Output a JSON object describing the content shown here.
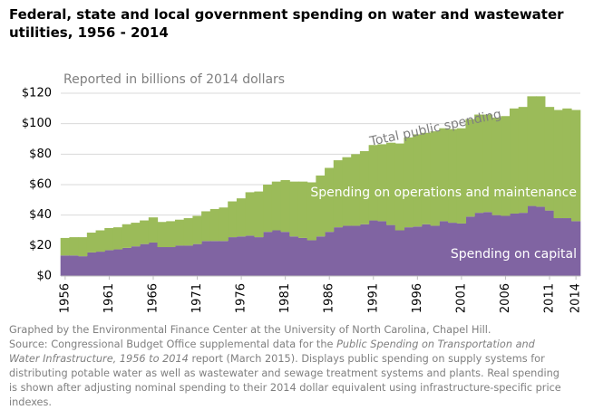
{
  "chart_data": {
    "type": "stacked-area-step",
    "title": "Federal, state and local government spending on water and wastewater utilities, 1956 - 2014",
    "subtitle": "Reported in billions of 2014 dollars",
    "annotation": "Total public spending",
    "x": [
      1956,
      1957,
      1958,
      1959,
      1960,
      1961,
      1962,
      1963,
      1964,
      1965,
      1966,
      1967,
      1968,
      1969,
      1970,
      1971,
      1972,
      1973,
      1974,
      1975,
      1976,
      1977,
      1978,
      1979,
      1980,
      1981,
      1982,
      1983,
      1984,
      1985,
      1986,
      1987,
      1988,
      1989,
      1990,
      1991,
      1992,
      1993,
      1994,
      1995,
      1996,
      1997,
      1998,
      1999,
      2000,
      2001,
      2002,
      2003,
      2004,
      2005,
      2006,
      2007,
      2008,
      2009,
      2010,
      2011,
      2012,
      2013,
      2014
    ],
    "xlim": [
      1956,
      2015
    ],
    "xticks": [
      1956,
      1961,
      1966,
      1971,
      1976,
      1981,
      1986,
      1991,
      1996,
      2001,
      2006,
      2011,
      2014
    ],
    "ylim": [
      0,
      120
    ],
    "yticks": [
      {
        "value": 0,
        "label": "$0"
      },
      {
        "value": 20,
        "label": "$20"
      },
      {
        "value": 40,
        "label": "$40"
      },
      {
        "value": 60,
        "label": "$60"
      },
      {
        "value": 80,
        "label": "$80"
      },
      {
        "value": 100,
        "label": "$100"
      },
      {
        "value": 120,
        "label": "$120"
      }
    ],
    "grid": true,
    "series": [
      {
        "name": "Spending on capital",
        "color": "#8064a2",
        "values": [
          13.5,
          13.5,
          13,
          15.5,
          16,
          17,
          17.5,
          18.5,
          19.5,
          21,
          22,
          19,
          19,
          20,
          20,
          21,
          23,
          23,
          23,
          25.5,
          26,
          26.5,
          25.5,
          29,
          30,
          29,
          26,
          25,
          23.5,
          26,
          29,
          32,
          33,
          33,
          34,
          36.5,
          36,
          33.5,
          30,
          32,
          32.5,
          34,
          33,
          36,
          35,
          34.5,
          39,
          41.5,
          42,
          40,
          39.5,
          41,
          41.5,
          46,
          45.5,
          43,
          38,
          38,
          36
        ]
      },
      {
        "name": "Spending on operations and maintenance",
        "color": "#9bbb59",
        "values": [
          11.5,
          12,
          12.5,
          13,
          14,
          14.5,
          14.5,
          15.5,
          15.5,
          15.5,
          16.5,
          16.5,
          17,
          17,
          18,
          18.5,
          19.5,
          21,
          22,
          23.5,
          25,
          28.5,
          30,
          31,
          32,
          34,
          36,
          37,
          38,
          40,
          42,
          44,
          45,
          47,
          48,
          49.5,
          50.5,
          54,
          57,
          59,
          60.5,
          60,
          62,
          61,
          61.5,
          62.5,
          64,
          64.5,
          64,
          64,
          65.5,
          69,
          69.5,
          72,
          72.5,
          68,
          71,
          72,
          73
        ]
      }
    ],
    "notes": {
      "credit": "Graphed by the Environmental Finance Center at the University of North Carolina, Chapel Hill.",
      "source_prefix": "Source: Congressional Budget Office  supplemental data for the ",
      "source_italic": "Public Spending on Transportation and Water Infrastructure, 1956 to 2014",
      "source_suffix": " report (March 2015). Displays public spending on supply systems for distributing potable water as well as wastewater and sewage treatment systems and plants. Real spending is shown after adjusting nominal spending to their 2014 dollar equivalent using infrastructure-specific price indexes."
    }
  }
}
